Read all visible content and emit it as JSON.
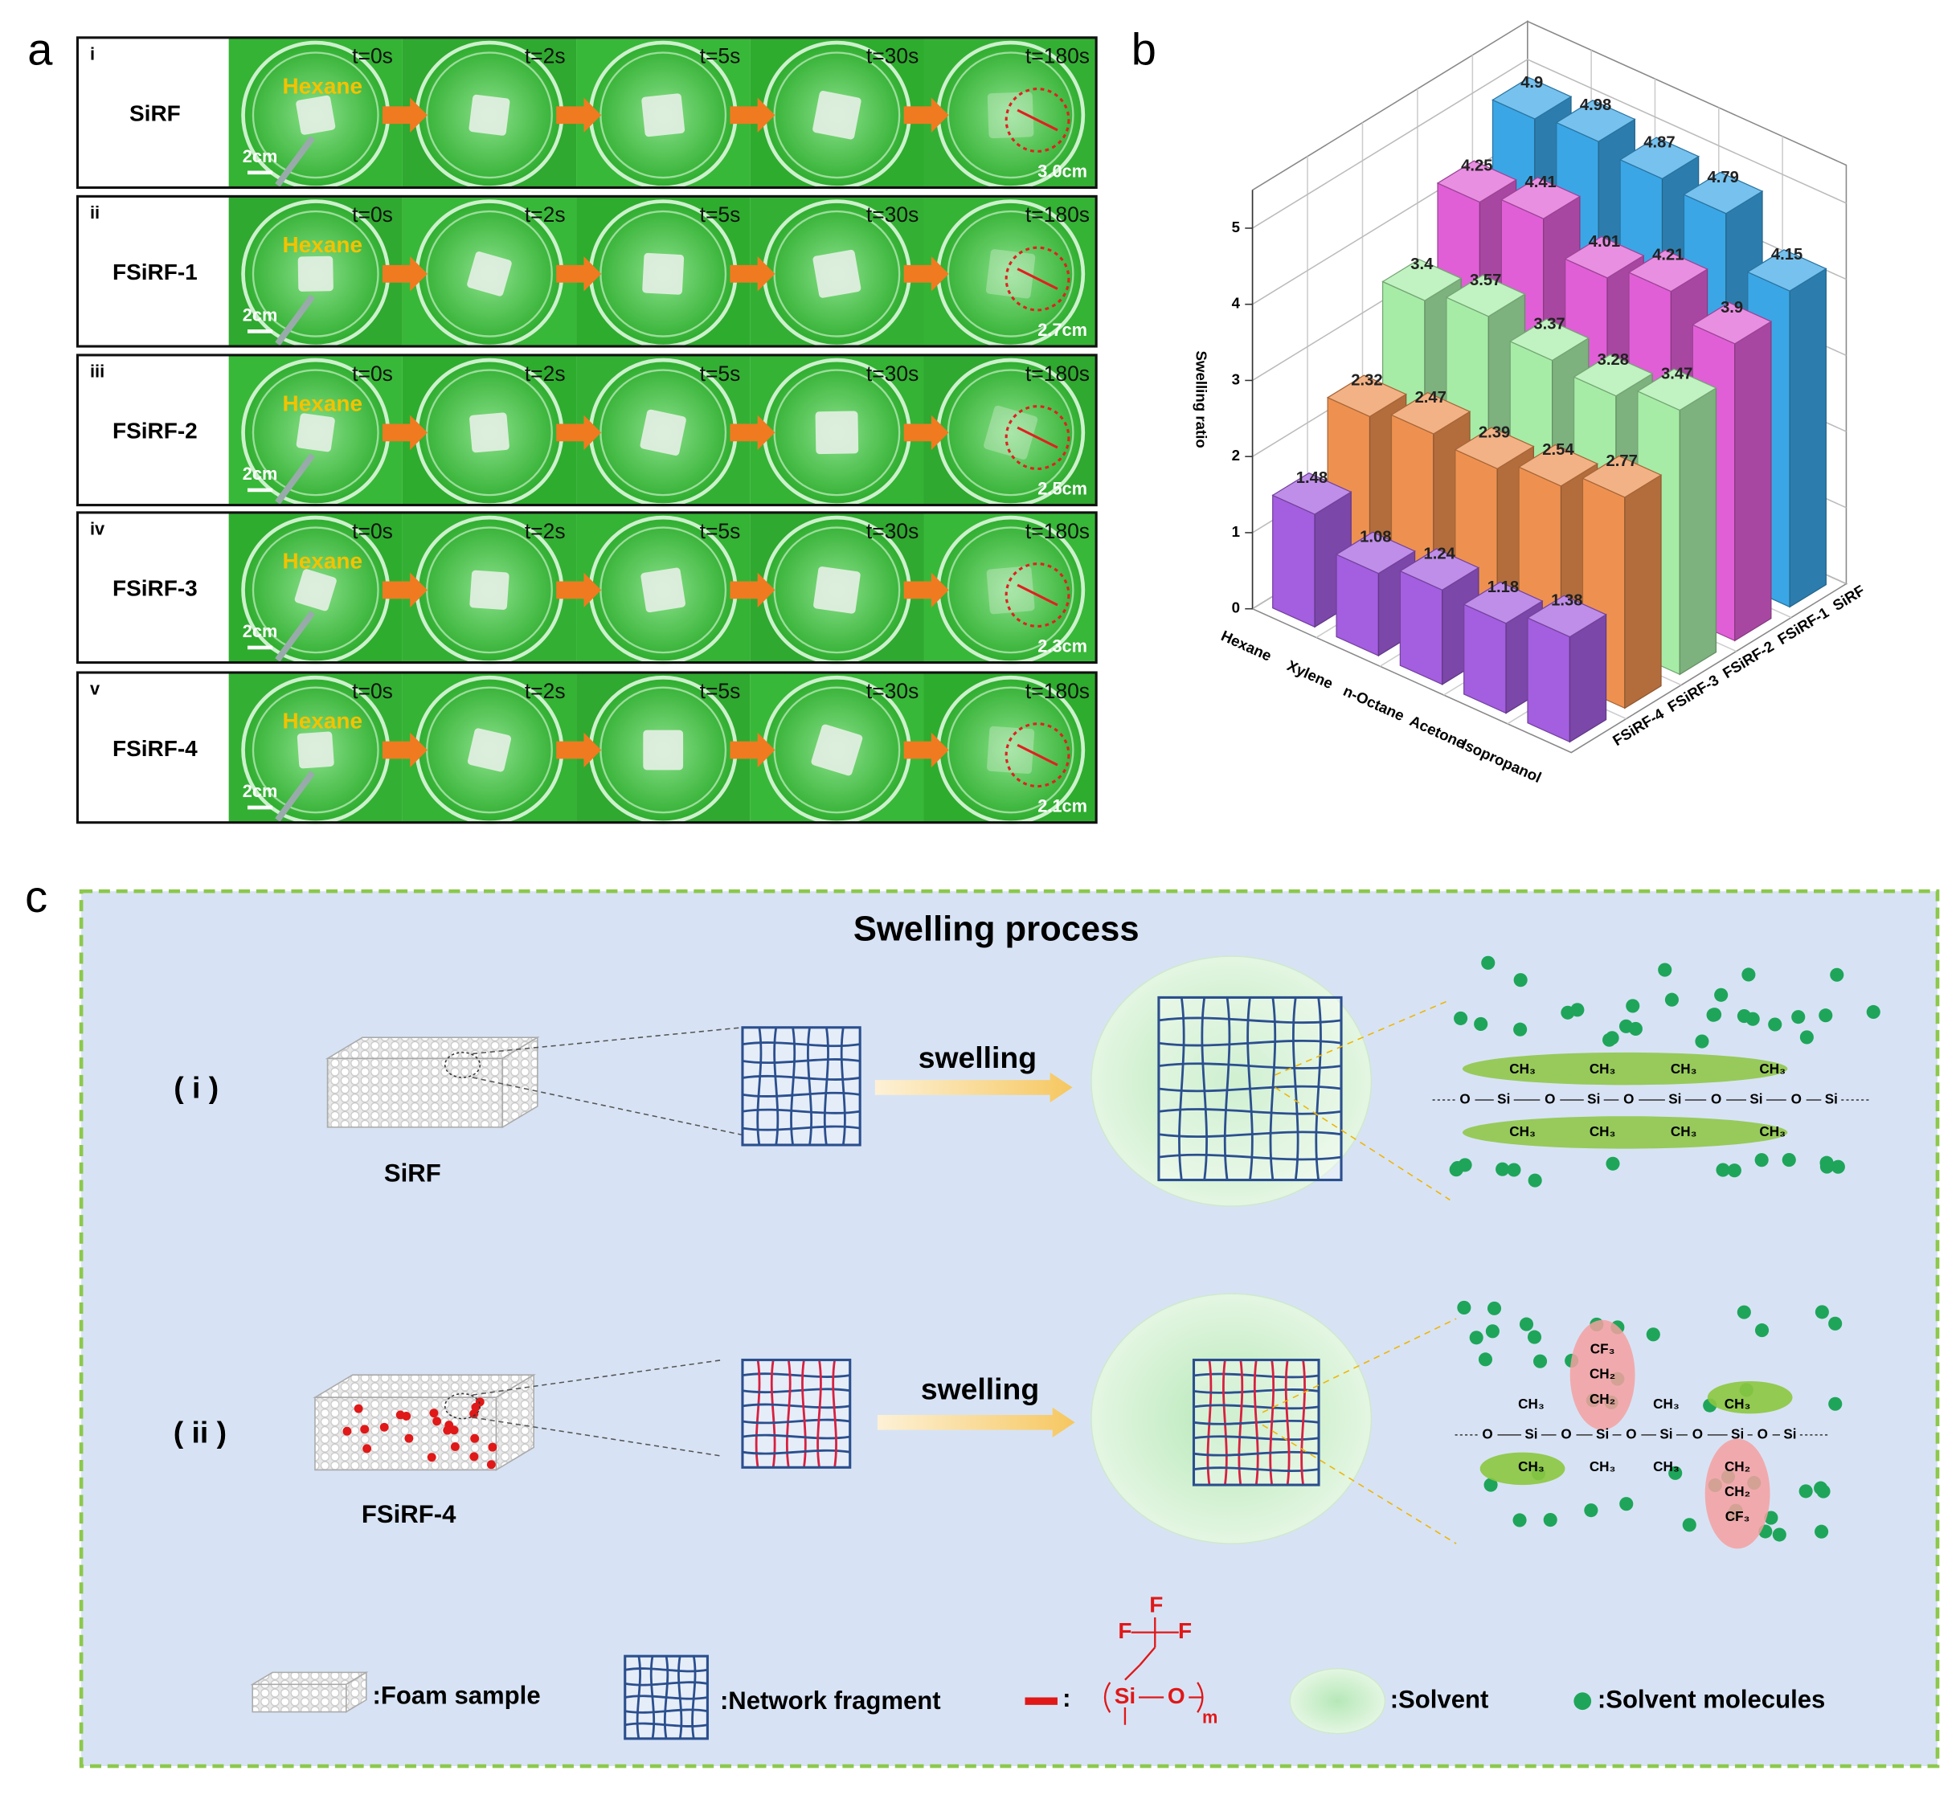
{
  "panel_labels": [
    "a",
    "b",
    "c"
  ],
  "panel_a": {
    "times": [
      "t=0s",
      "t=2s",
      "t=5s",
      "t=30s",
      "t=180s"
    ],
    "rows": [
      {
        "numeral": "i",
        "sample": "SiRF",
        "solvent": "Hexane",
        "scale": "2cm",
        "diameter": "3.0cm"
      },
      {
        "numeral": "ii",
        "sample": "FSiRF-1",
        "solvent": "Hexane",
        "scale": "2cm",
        "diameter": "2.7cm"
      },
      {
        "numeral": "iii",
        "sample": "FSiRF-2",
        "solvent": "Hexane",
        "scale": "2cm",
        "diameter": "2.5cm"
      },
      {
        "numeral": "iv",
        "sample": "FSiRF-3",
        "solvent": "Hexane",
        "scale": "2cm",
        "diameter": "2.3cm"
      },
      {
        "numeral": "v",
        "sample": "FSiRF-4",
        "solvent": "Hexane",
        "scale": "2cm",
        "diameter": "2.1cm"
      }
    ]
  },
  "chart_data": {
    "type": "bar3d",
    "zlabel": "Swelling ratio",
    "categories": [
      "Hexane",
      "Xylene",
      "n-Octane",
      "Acetone",
      "Isopropanol"
    ],
    "series": [
      {
        "name": "SiRF",
        "color": "#3ba6e6",
        "values": [
          4.9,
          4.98,
          4.87,
          4.79,
          4.15
        ]
      },
      {
        "name": "FSiRF-1",
        "color": "#e05fd6",
        "values": [
          4.25,
          4.41,
          4.01,
          4.21,
          3.9
        ]
      },
      {
        "name": "FSiRF-2",
        "color": "#a6eca6",
        "values": [
          3.4,
          3.57,
          3.37,
          3.28,
          3.47
        ]
      },
      {
        "name": "FSiRF-3",
        "color": "#ee9150",
        "values": [
          2.32,
          2.47,
          2.39,
          2.54,
          2.77
        ]
      },
      {
        "name": "FSiRF-4",
        "color": "#a45ee0",
        "values": [
          1.48,
          1.08,
          1.24,
          1.18,
          1.38
        ]
      }
    ],
    "zlim": [
      0,
      5.5
    ],
    "zticks": [
      0,
      1,
      2,
      3,
      4,
      5
    ],
    "grid": true
  },
  "panel_c": {
    "title": "Swelling process",
    "rows": [
      {
        "numeral": "( i )",
        "sample": "SiRF",
        "arrow": "swelling",
        "chain": [
          "O",
          "Si",
          "O",
          "Si",
          "O",
          "Si",
          "O",
          "Si",
          "O",
          "Si"
        ],
        "top": [
          "CH₃",
          "CH₃",
          "CH₃",
          "CH₃"
        ],
        "bottom": [
          "CH₃",
          "CH₃",
          "CH₃",
          "CH₃"
        ]
      },
      {
        "numeral": "( ii )",
        "sample": "FSiRF-4",
        "arrow": "swelling",
        "chain": [
          "O",
          "Si",
          "O",
          "Si",
          "O",
          "Si",
          "O",
          "Si",
          "O",
          "Si"
        ],
        "top": [
          "CH₃",
          "CH₃",
          "CH₃"
        ],
        "bottom": [
          "CH₃",
          "CH₃",
          "CH₃"
        ],
        "fluoro_up": [
          "CF₃",
          "CH₂",
          "CH₂"
        ],
        "fluoro_down": [
          "CH₂",
          "CH₂",
          "CF₃"
        ]
      }
    ],
    "legend": {
      "foam": ":Foam sample",
      "network": ":Network fragment",
      "unit": ":",
      "unit_formula": [
        "F",
        "F",
        "F",
        "Si",
        "O",
        "m"
      ],
      "solvent": ":Solvent",
      "molecules": ":Solvent molecules"
    }
  }
}
